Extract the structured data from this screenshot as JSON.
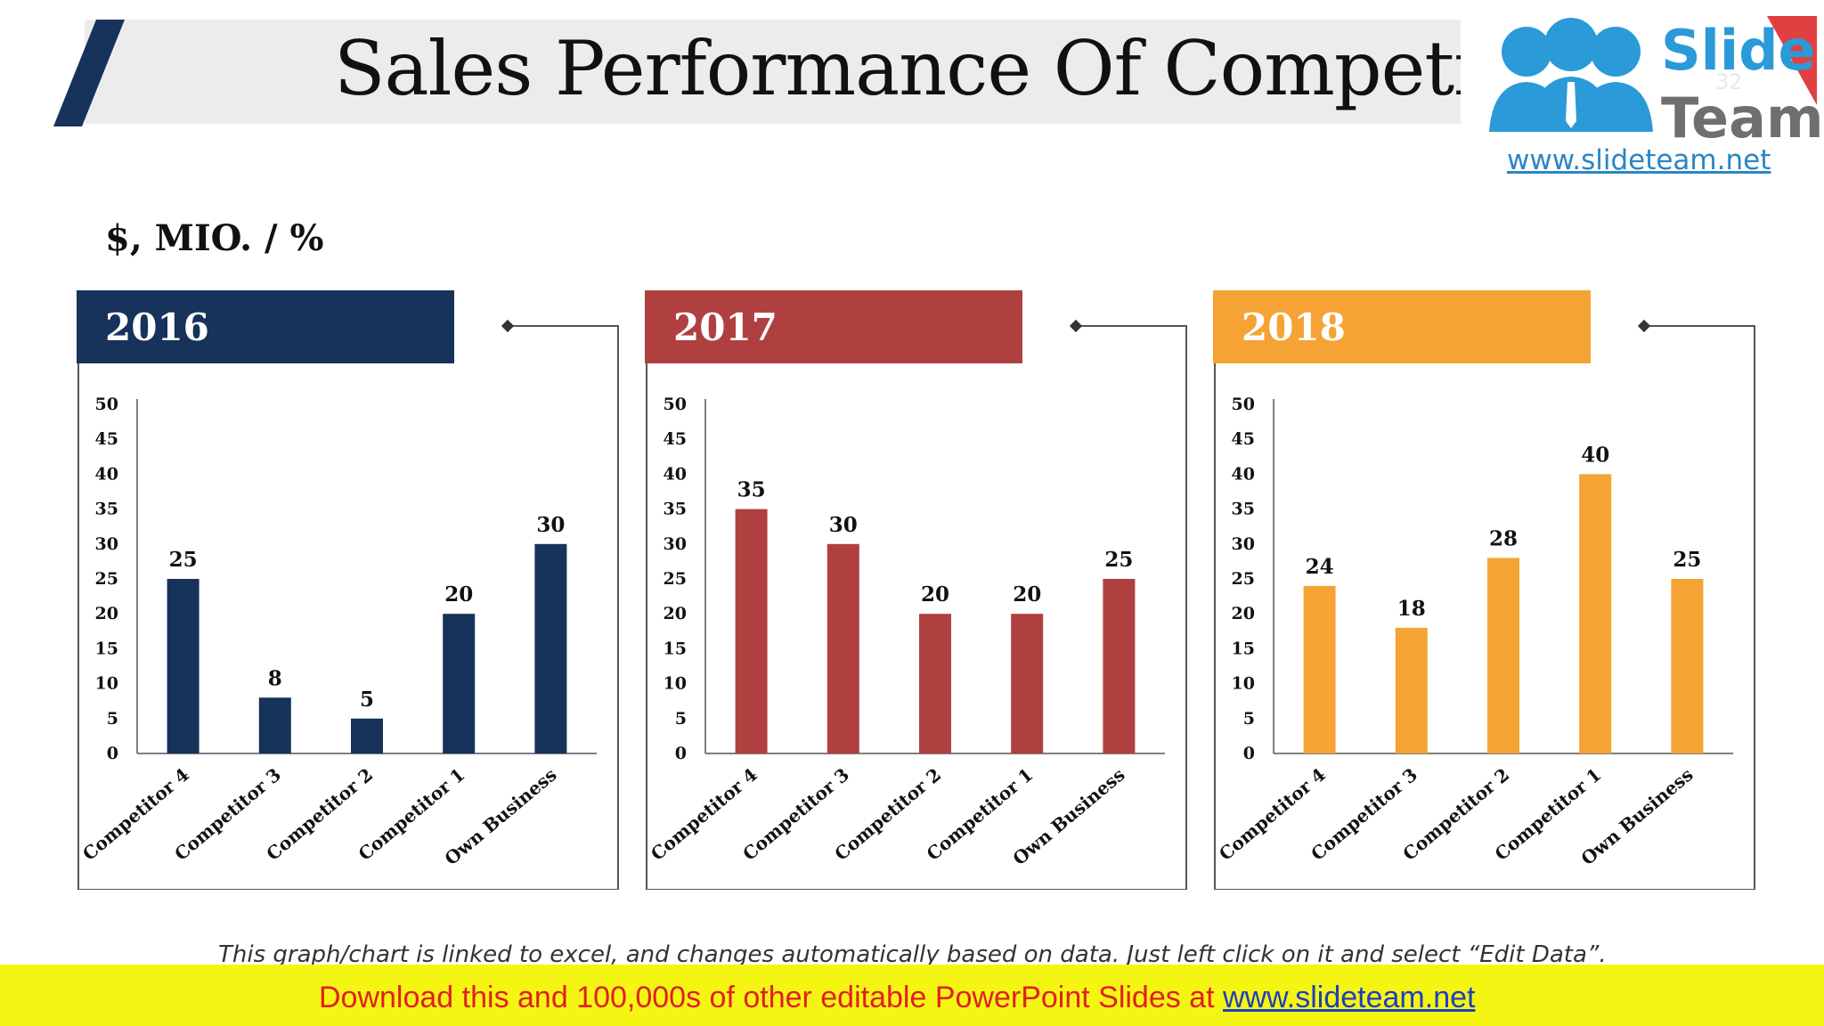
{
  "title": "Sales Performance Of Competitors",
  "unit_label": "$, MIO. / %",
  "logo": {
    "word1": "Slide",
    "word2": "Team",
    "url": "www.slideteam.net",
    "slide_number": "32"
  },
  "note": "This graph/chart is linked to excel, and changes automatically based on data. Just left click on it and select “Edit Data”.",
  "banner": {
    "text": "Download this and 100,000s of other editable PowerPoint Slides at ",
    "link": "www.slideteam.net"
  },
  "colors": {
    "y2016": "#17325b",
    "y2017": "#b04040",
    "y2018": "#f4a334"
  },
  "chart_data": [
    {
      "type": "bar",
      "title": "2016",
      "categories": [
        "Competitor 4",
        "Competitor 3",
        "Competitor 2",
        "Competitor 1",
        "Own Business"
      ],
      "values": [
        25,
        8,
        5,
        20,
        30
      ],
      "ylim": [
        0,
        50
      ],
      "yticks": [
        0,
        5,
        10,
        15,
        20,
        25,
        30,
        35,
        40,
        45,
        50
      ]
    },
    {
      "type": "bar",
      "title": "2017",
      "categories": [
        "Competitor 4",
        "Competitor 3",
        "Competitor 2",
        "Competitor 1",
        "Own Business"
      ],
      "values": [
        35,
        30,
        20,
        20,
        25
      ],
      "ylim": [
        0,
        50
      ],
      "yticks": [
        0,
        5,
        10,
        15,
        20,
        25,
        30,
        35,
        40,
        45,
        50
      ]
    },
    {
      "type": "bar",
      "title": "2018",
      "categories": [
        "Competitor 4",
        "Competitor 3",
        "Competitor 2",
        "Competitor 1",
        "Own Business"
      ],
      "values": [
        24,
        18,
        28,
        40,
        25
      ],
      "ylim": [
        0,
        50
      ],
      "yticks": [
        0,
        5,
        10,
        15,
        20,
        25,
        30,
        35,
        40,
        45,
        50
      ]
    }
  ]
}
